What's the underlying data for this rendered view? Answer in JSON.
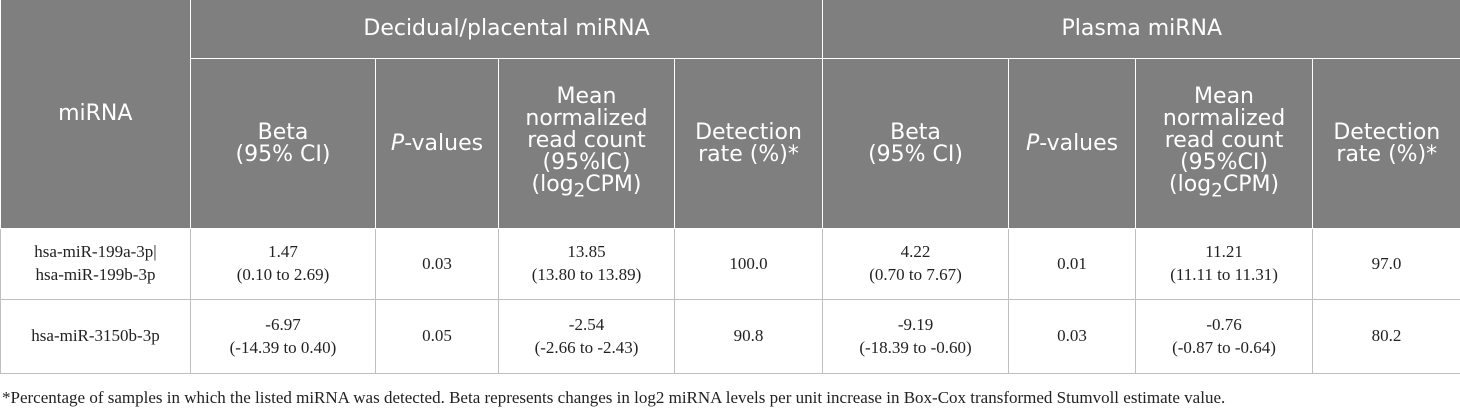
{
  "table": {
    "groups": {
      "mirna": "miRNA",
      "decidual": "Decidual/placental miRNA",
      "plasma": "Plasma miRNA"
    },
    "columns": {
      "decidual": {
        "beta": [
          "Beta",
          "(95% CI)"
        ],
        "p_prefix": "P",
        "p_suffix": "-values",
        "mean": [
          "Mean",
          "normalized",
          "read count",
          "(95%IC)",
          "(log",
          "2",
          "CPM)"
        ],
        "detection": [
          "Detection",
          "rate (%)*"
        ]
      },
      "plasma": {
        "beta": [
          "Beta",
          "(95% CI)"
        ],
        "p_prefix": "P",
        "p_suffix": "-values",
        "mean": [
          "Mean",
          "normalized",
          "read count",
          "(95%CI)",
          "(log",
          "2",
          "CPM)"
        ],
        "detection": [
          "Detection",
          "rate (%)*"
        ]
      }
    },
    "rows": [
      {
        "mirna": [
          "hsa-miR-199a-3p|",
          "hsa-miR-199b-3p"
        ],
        "dec_beta": [
          "1.47",
          "(0.10 to 2.69)"
        ],
        "dec_p": "0.03",
        "dec_mean": [
          "13.85",
          "(13.80 to 13.89)"
        ],
        "dec_detection": "100.0",
        "pla_beta": [
          "4.22",
          "(0.70 to 7.67)"
        ],
        "pla_p": "0.01",
        "pla_mean": [
          "11.21",
          "(11.11 to 11.31)"
        ],
        "pla_detection": "97.0"
      },
      {
        "mirna": [
          "hsa-miR-3150b-3p"
        ],
        "dec_beta": [
          "-6.97",
          "(-14.39 to 0.40)"
        ],
        "dec_p": "0.05",
        "dec_mean": [
          "-2.54",
          "(-2.66 to -2.43)"
        ],
        "dec_detection": "90.8",
        "pla_beta": [
          "-9.19",
          "(-18.39 to -0.60)"
        ],
        "pla_p": "0.03",
        "pla_mean": [
          "-0.76",
          "(-0.87 to -0.64)"
        ],
        "pla_detection": "80.2"
      }
    ]
  },
  "footnote": "*Percentage of samples in which the listed miRNA was detected. Beta represents changes in log2 miRNA levels per unit increase in Box-Cox transformed Stumvoll estimate value.",
  "colors": {
    "header_bg": "#7f7f7f",
    "header_text": "#ffffff",
    "grid": "#bfbfbf",
    "body_text": "#222222"
  }
}
